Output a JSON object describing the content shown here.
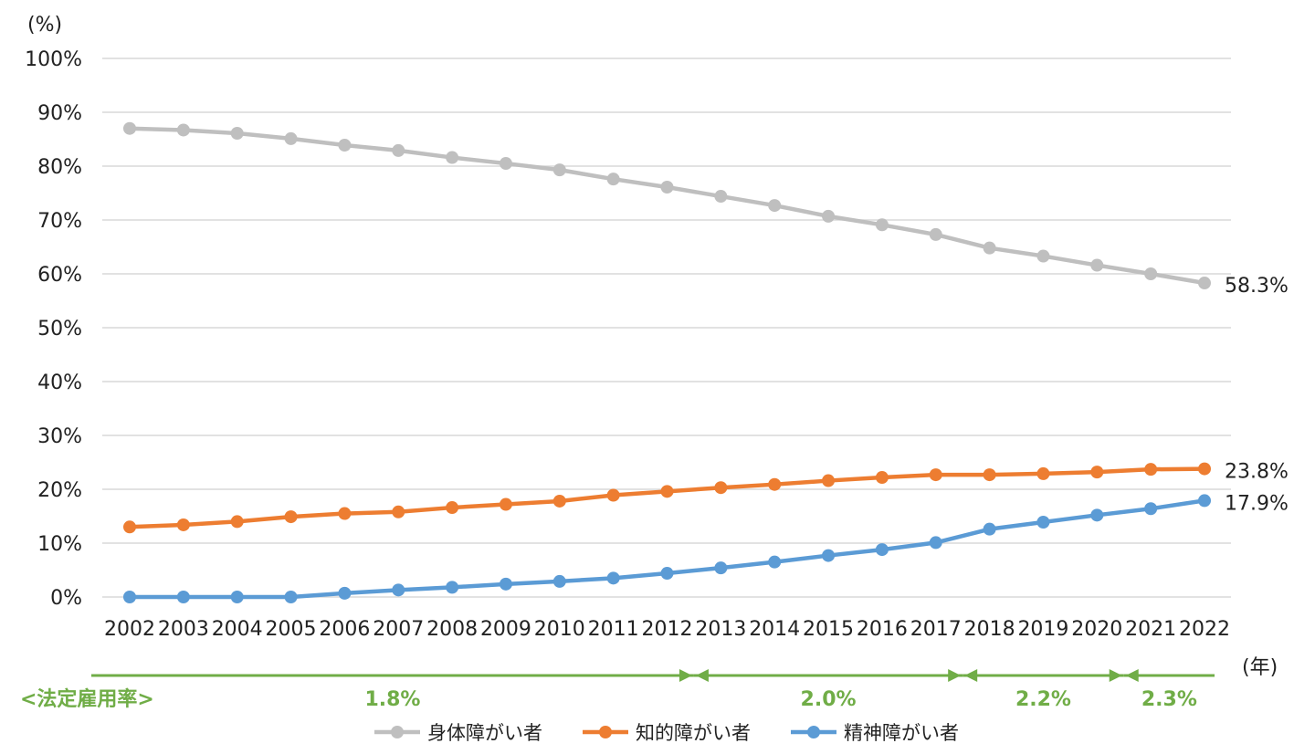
{
  "chart_data": {
    "type": "line",
    "y_unit_label": "(%)",
    "x_unit_label": "(年)",
    "x": [
      "2002",
      "2003",
      "2004",
      "2005",
      "2006",
      "2007",
      "2008",
      "2009",
      "2010",
      "2011",
      "2012",
      "2013",
      "2014",
      "2015",
      "2016",
      "2017",
      "2018",
      "2019",
      "2020",
      "2021",
      "2022"
    ],
    "ylim": [
      0,
      100
    ],
    "yticks": [
      "0%",
      "10%",
      "20%",
      "30%",
      "40%",
      "50%",
      "60%",
      "70%",
      "80%",
      "90%",
      "100%"
    ],
    "grid": true,
    "legend_position": "bottom",
    "series": [
      {
        "name": "身体障がい者",
        "color": "#BFBFBF",
        "values": [
          87.0,
          86.7,
          86.1,
          85.1,
          83.9,
          82.9,
          81.6,
          80.5,
          79.3,
          77.6,
          76.1,
          74.4,
          72.7,
          70.7,
          69.1,
          67.3,
          64.8,
          63.3,
          61.6,
          60.0,
          58.3
        ],
        "end_label": "58.3%"
      },
      {
        "name": "知的障がい者",
        "color": "#ED7D31",
        "values": [
          13.0,
          13.4,
          14.0,
          14.9,
          15.5,
          15.8,
          16.6,
          17.2,
          17.8,
          18.9,
          19.6,
          20.3,
          20.9,
          21.6,
          22.2,
          22.7,
          22.7,
          22.9,
          23.2,
          23.7,
          23.8
        ],
        "end_label": "23.8%"
      },
      {
        "name": "精神障がい者",
        "color": "#5B9BD5",
        "values": [
          0.0,
          0.0,
          0.0,
          0.0,
          0.7,
          1.3,
          1.8,
          2.4,
          2.9,
          3.5,
          4.4,
          5.4,
          6.5,
          7.7,
          8.8,
          10.1,
          12.6,
          13.9,
          15.2,
          16.4,
          17.9
        ],
        "end_label": "17.9%"
      }
    ],
    "legal_rate": {
      "title": "<法定雇用率>",
      "color": "#70AD47",
      "periods": [
        {
          "label": "1.8%",
          "from": "2002",
          "to": "2012"
        },
        {
          "label": "2.0%",
          "from": "2013",
          "to": "2017"
        },
        {
          "label": "2.2%",
          "from": "2018",
          "to": "2020"
        },
        {
          "label": "2.3%",
          "from": "2021",
          "to": "2022"
        }
      ]
    }
  }
}
